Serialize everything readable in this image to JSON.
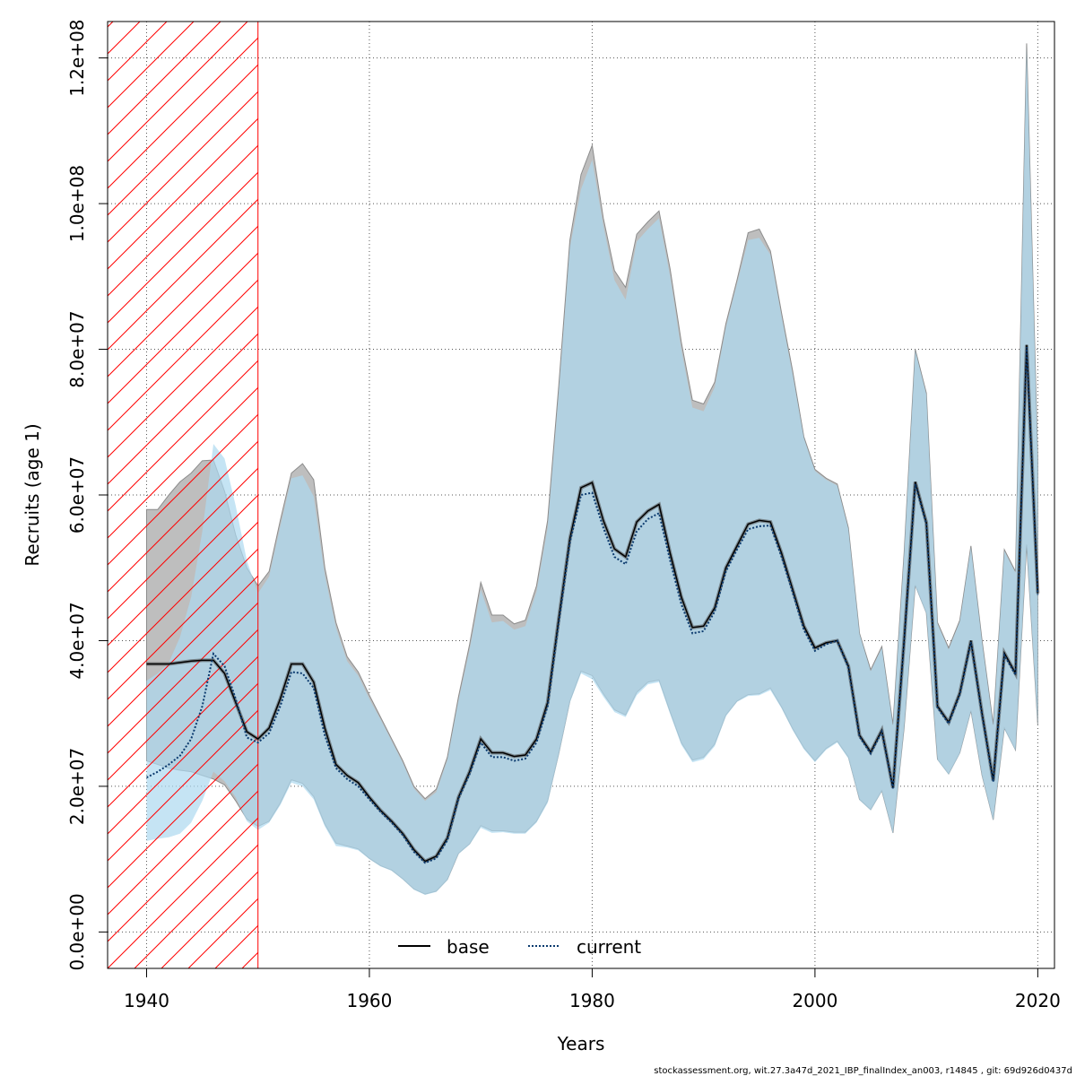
{
  "chart_data": {
    "type": "line",
    "xlabel": "Years",
    "ylabel": "Recruits (age 1)",
    "xlim": [
      1936.5,
      2021.5
    ],
    "ylim": [
      -5000000,
      125000000
    ],
    "xticks": [
      1940,
      1960,
      1980,
      2000,
      2020
    ],
    "xtick_labels": [
      "1940",
      "1960",
      "1980",
      "2000",
      "2020"
    ],
    "yticks": [
      0,
      20000000,
      40000000,
      60000000,
      80000000,
      100000000,
      120000000
    ],
    "ytick_labels": [
      "0.0e+00",
      "2.0e+07",
      "4.0e+07",
      "6.0e+07",
      "8.0e+07",
      "1.0e+08",
      "1.2e+08"
    ],
    "grid": true,
    "legend_position": "bottom",
    "hatched_region": {
      "x_from": 1936.5,
      "x_to": 1950,
      "color": "#ff0000"
    },
    "years": [
      1940,
      1941,
      1942,
      1943,
      1944,
      1945,
      1946,
      1947,
      1948,
      1949,
      1950,
      1951,
      1952,
      1953,
      1954,
      1955,
      1956,
      1957,
      1958,
      1959,
      1960,
      1961,
      1962,
      1963,
      1964,
      1965,
      1966,
      1967,
      1968,
      1969,
      1970,
      1971,
      1972,
      1973,
      1974,
      1975,
      1976,
      1977,
      1978,
      1979,
      1980,
      1981,
      1982,
      1983,
      1984,
      1985,
      1986,
      1987,
      1988,
      1989,
      1990,
      1991,
      1992,
      1993,
      1994,
      1995,
      1996,
      1997,
      1998,
      1999,
      2000,
      2001,
      2002,
      2003,
      2004,
      2005,
      2006,
      2007,
      2008,
      2009,
      2010,
      2011,
      2012,
      2013,
      2014,
      2015,
      2016,
      2017,
      2018,
      2019,
      2020
    ],
    "series": [
      {
        "name": "base",
        "color": "#000000",
        "band_color": "#bebebe",
        "values": [
          36800000,
          36800000,
          36800000,
          37000000,
          37200000,
          37300000,
          37300000,
          35500000,
          31500000,
          27500000,
          26500000,
          28000000,
          32000000,
          36800000,
          36800000,
          34300000,
          28000000,
          23000000,
          21500000,
          20500000,
          18500000,
          16700000,
          15200000,
          13500000,
          11300000,
          9700000,
          10400000,
          12900000,
          18500000,
          22000000,
          26500000,
          24600000,
          24600000,
          24100000,
          24300000,
          26500000,
          31500000,
          43000000,
          54000000,
          61000000,
          61700000,
          56500000,
          52600000,
          51500000,
          56300000,
          57800000,
          58700000,
          52000000,
          46000000,
          41800000,
          42000000,
          44500000,
          50000000,
          53000000,
          56000000,
          56500000,
          56300000,
          52000000,
          47000000,
          42000000,
          39000000,
          39700000,
          40000000,
          36500000,
          27000000,
          24700000,
          27700000,
          19800000,
          40000000,
          61800000,
          56200000,
          31000000,
          28800000,
          32800000,
          40000000,
          30000000,
          20800000,
          38300000,
          35500000,
          80600000,
          46500000
        ],
        "lower": [
          23500000,
          23000000,
          22500000,
          22200000,
          22000000,
          21500000,
          21000000,
          20200000,
          18000000,
          15500000,
          14500000,
          15200000,
          17700000,
          20900000,
          20400000,
          18600000,
          14800000,
          12200000,
          11800000,
          11400000,
          10100000,
          9100000,
          8500000,
          7300000,
          5900000,
          5200000,
          5600000,
          7200000,
          10800000,
          12100000,
          14600000,
          13900000,
          13900000,
          13700000,
          13700000,
          15200000,
          18000000,
          24500000,
          31700000,
          35800000,
          35200000,
          32700000,
          30500000,
          29800000,
          32900000,
          34300000,
          34600000,
          30200000,
          26000000,
          23600000,
          24000000,
          25800000,
          29800000,
          31700000,
          32600000,
          32700000,
          33500000,
          30900000,
          27900000,
          25300000,
          23500000,
          25200000,
          26200000,
          24000000,
          18200000,
          16800000,
          19400000,
          13600000,
          28000000,
          47600000,
          43800000,
          23700000,
          21700000,
          24600000,
          30400000,
          21500000,
          15400000,
          28000000,
          25000000,
          53200000,
          28500000
        ],
        "upper": [
          58000000,
          58000000,
          60000000,
          61800000,
          63000000,
          64700000,
          64800000,
          60500000,
          54500000,
          50000000,
          47500000,
          49500000,
          56500000,
          63000000,
          64300000,
          62100000,
          50000000,
          42500000,
          37800000,
          35700000,
          32500000,
          29500000,
          26500000,
          23500000,
          20000000,
          18300000,
          19600000,
          24000000,
          32300000,
          39500000,
          48000000,
          43500000,
          43500000,
          42300000,
          42800000,
          47500000,
          56500000,
          75000000,
          95000000,
          104000000,
          108000000,
          98000000,
          90800000,
          88500000,
          95800000,
          97500000,
          99000000,
          91000000,
          81000000,
          73000000,
          72500000,
          75500000,
          83500000,
          89500000,
          96000000,
          96500000,
          93500000,
          85000000,
          77000000,
          68000000,
          63500000,
          62300000,
          61500000,
          55500000,
          41000000,
          36000000,
          39200000,
          28500000,
          52000000,
          80000000,
          74000000,
          42500000,
          39000000,
          42800000,
          53000000,
          40000000,
          28500000,
          52500000,
          49500000,
          122000000,
          65000000
        ]
      },
      {
        "name": "current",
        "color": "#0b3a6e",
        "band_color": "#add8f0",
        "values": [
          21200000,
          22000000,
          23000000,
          24200000,
          26500000,
          31000000,
          38200000,
          36500000,
          32000000,
          26700000,
          26000000,
          27300000,
          31000000,
          35700000,
          35500000,
          33500000,
          27000000,
          22500000,
          21000000,
          20000000,
          18200000,
          16500000,
          15000000,
          13300000,
          11000000,
          9500000,
          10100000,
          12600000,
          18300000,
          21700000,
          26000000,
          24000000,
          24000000,
          23500000,
          23800000,
          26000000,
          31000000,
          42500000,
          53500000,
          60000000,
          60300000,
          55500000,
          51500000,
          50500000,
          55000000,
          56700000,
          57500000,
          51000000,
          45000000,
          41000000,
          41300000,
          44000000,
          49500000,
          52500000,
          55300000,
          55700000,
          55800000,
          51500000,
          46600000,
          41500000,
          38600000,
          39500000,
          40000000,
          36300000,
          26800000,
          24500000,
          27500000,
          19700000,
          39800000,
          61500000,
          56000000,
          30800000,
          28600000,
          32600000,
          39800000,
          29800000,
          20600000,
          38000000,
          35300000,
          80300000,
          46300000
        ],
        "lower": [
          12500000,
          12800000,
          13000000,
          13500000,
          15000000,
          18000000,
          22000000,
          20700000,
          18500000,
          15200000,
          14000000,
          15000000,
          17400000,
          20500000,
          20000000,
          18200000,
          14500000,
          11800000,
          11600000,
          11200000,
          10000000,
          9000000,
          8400000,
          7200000,
          5800000,
          5100000,
          5500000,
          7100000,
          10700000,
          12000000,
          14300000,
          13600000,
          13700000,
          13500000,
          13500000,
          15000000,
          17700000,
          24300000,
          31500000,
          35500000,
          34700000,
          32300000,
          30200000,
          29500000,
          32500000,
          34000000,
          34300000,
          29900000,
          25700000,
          23300000,
          23700000,
          25500000,
          29600000,
          31600000,
          32400000,
          32500000,
          33200000,
          30700000,
          27700000,
          25100000,
          23300000,
          25000000,
          26000000,
          23800000,
          18100000,
          16700000,
          19300000,
          13500000,
          27900000,
          47500000,
          43700000,
          23600000,
          21600000,
          24500000,
          30300000,
          21400000,
          15300000,
          27900000,
          24900000,
          53000000,
          28300000
        ],
        "upper": [
          34500000,
          35500000,
          37000000,
          40500000,
          46000000,
          55000000,
          67000000,
          65000000,
          58500000,
          51000000,
          46500000,
          48800000,
          55700000,
          62300000,
          62700000,
          59800000,
          49000000,
          41800000,
          37200000,
          35200000,
          32000000,
          29200000,
          26200000,
          23200000,
          19700000,
          18000000,
          19200000,
          23600000,
          31800000,
          38800000,
          47000000,
          42500000,
          42700000,
          41500000,
          42000000,
          46700000,
          55500000,
          74000000,
          94000000,
          102000000,
          106000000,
          97000000,
          89500000,
          86800000,
          94800000,
          96500000,
          98000000,
          90000000,
          80000000,
          72000000,
          71500000,
          74800000,
          83000000,
          89000000,
          95000000,
          95300000,
          93000000,
          84500000,
          76500000,
          67800000,
          63300000,
          62100000,
          61300000,
          55300000,
          40900000,
          35800000,
          39000000,
          28300000,
          51800000,
          79800000,
          73800000,
          42300000,
          38800000,
          42600000,
          52800000,
          39800000,
          28300000,
          52300000,
          49300000,
          121500000,
          64800000
        ]
      }
    ]
  },
  "footer": {
    "text": "stockassessment.org, wit.27.3a47d_2021_IBP_finalIndex_an003, r14845 , git: 69d926d0437d"
  }
}
